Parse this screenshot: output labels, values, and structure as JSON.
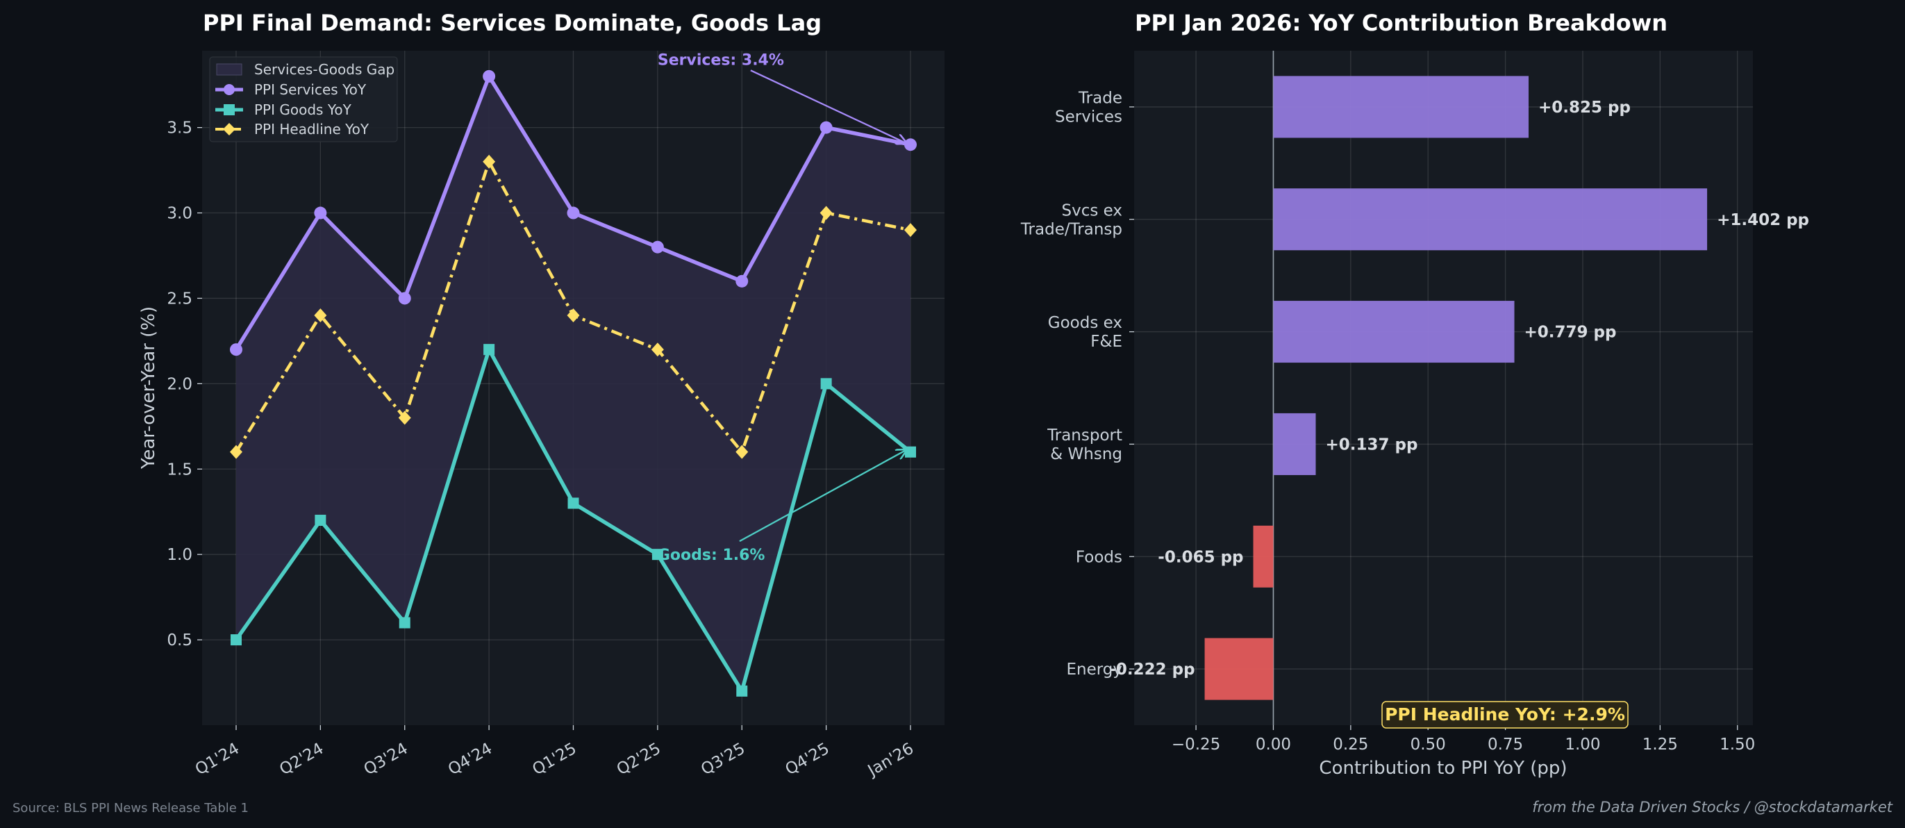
{
  "footer": {
    "source": "Source: BLS PPI News Release Table 1",
    "credit": "from the Data Driven Stocks / @stockdatamarket"
  },
  "colors": {
    "background": "#0d1117",
    "panel": "#161b22",
    "services": "#a78bfa",
    "goods": "#4ecdc4",
    "headline": "#ffe066",
    "positive_bar": "#9078d8",
    "negative_bar": "#e05a5a",
    "gap_fill": "#2b2a42"
  },
  "chart_data": [
    {
      "type": "line",
      "title": "PPI Final Demand: Services Dominate, Goods Lag",
      "xlabel": "",
      "ylabel": "Year-over-Year (%)",
      "categories": [
        "Q1'24",
        "Q2'24",
        "Q3'24",
        "Q4'24",
        "Q1'25",
        "Q2'25",
        "Q3'25",
        "Q4'25",
        "Jan'26"
      ],
      "ylim": [
        0,
        3.95
      ],
      "yticks": [
        0.5,
        1.0,
        1.5,
        2.0,
        2.5,
        3.0,
        3.5
      ],
      "ytick_labels": [
        "0.5",
        "1.0",
        "1.5",
        "2.0",
        "2.5",
        "3.0",
        "3.5"
      ],
      "grid": true,
      "legend_position": "top-left",
      "fill_between": {
        "name": "Services-Goods Gap",
        "upper": "PPI Services YoY",
        "lower": "PPI Goods YoY"
      },
      "series": [
        {
          "name": "PPI Services YoY",
          "marker": "circle",
          "style": "solid",
          "values": [
            2.2,
            3.0,
            2.5,
            3.8,
            3.0,
            2.8,
            2.6,
            3.5,
            3.4
          ]
        },
        {
          "name": "PPI Goods YoY",
          "marker": "square",
          "style": "solid",
          "values": [
            0.5,
            1.2,
            0.6,
            2.2,
            1.3,
            1.0,
            0.2,
            2.0,
            1.6
          ]
        },
        {
          "name": "PPI Headline YoY",
          "marker": "diamond",
          "style": "dash-dot",
          "values": [
            1.6,
            2.4,
            1.8,
            3.3,
            2.4,
            2.2,
            1.6,
            3.0,
            2.9
          ]
        }
      ],
      "annotations": [
        {
          "text": "Services: 3.4%",
          "target_category": "Jan'26",
          "target_value": 3.4,
          "text_category": "Q2'25",
          "text_value": 3.9
        },
        {
          "text": "Goods: 1.6%",
          "target_category": "Jan'26",
          "target_value": 1.6,
          "text_category": "Q2'25",
          "text_value": 1.0
        }
      ]
    },
    {
      "type": "bar",
      "orientation": "horizontal",
      "title": "PPI Jan 2026: YoY Contribution Breakdown",
      "xlabel": "Contribution to PPI YoY (pp)",
      "ylabel": "",
      "categories": [
        "Trade\nServices",
        "Svcs ex\nTrade/Transp",
        "Goods ex\nF&E",
        "Transport\n& Whsng",
        "Foods",
        "Energy"
      ],
      "values": [
        0.825,
        1.402,
        0.779,
        0.137,
        -0.065,
        -0.222
      ],
      "value_labels": [
        "+0.825 pp",
        "+1.402 pp",
        "+0.779 pp",
        "+0.137 pp",
        "-0.065 pp",
        "-0.222 pp"
      ],
      "xlim": [
        -0.45,
        1.55
      ],
      "xticks": [
        -0.25,
        0.0,
        0.25,
        0.5,
        0.75,
        1.0,
        1.25,
        1.5
      ],
      "xtick_labels": [
        "−0.25",
        "0.00",
        "0.25",
        "0.50",
        "0.75",
        "1.00",
        "1.25",
        "1.50"
      ],
      "grid": true,
      "headline_box": "PPI Headline YoY: +2.9%"
    }
  ]
}
